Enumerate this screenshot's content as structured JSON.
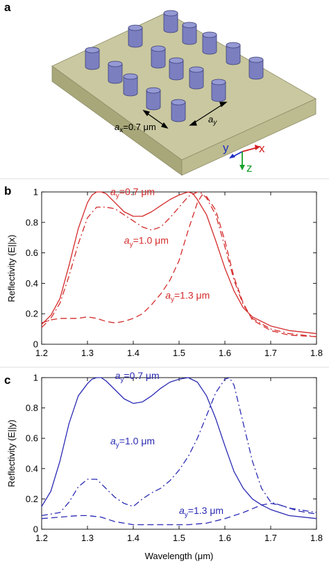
{
  "panels": {
    "a": {
      "label": "a",
      "ax_label": "a",
      "ax_sub": "x",
      "ax_value": "=0.7 μm",
      "ay_label": "a",
      "ay_sub": "y",
      "axes": {
        "x": "x",
        "y": "y",
        "z": "z"
      },
      "colors": {
        "slab_top": "#c9c8a0",
        "slab_front": "#a8a77a",
        "slab_side": "#bdbc90",
        "pillar": "#7b7fc0",
        "axis_x": "#d42020",
        "axis_y": "#2030c0",
        "axis_z": "#18a028"
      }
    },
    "b": {
      "label": "b"
    },
    "c": {
      "label": "c"
    }
  },
  "chart_data": [
    {
      "type": "line",
      "panel": "b",
      "ylabel": "Reflectivity (E||x)",
      "xlabel": "",
      "xlim": [
        1.2,
        1.8
      ],
      "ylim": [
        0,
        1
      ],
      "xticks": [
        "1.2",
        "1.3",
        "1.4",
        "1.5",
        "1.6",
        "1.7",
        "1.8"
      ],
      "yticks": [
        "0",
        "0.2",
        "0.4",
        "0.6",
        "0.8",
        "1"
      ],
      "color": "#d42a2a",
      "annotations": [
        {
          "pre": "a",
          "sub": "y",
          "post": "=0.7 μm",
          "x": 1.35,
          "y": 0.98
        },
        {
          "pre": "a",
          "sub": "y",
          "post": "=1.0 μm",
          "x": 1.38,
          "y": 0.66
        },
        {
          "pre": "a",
          "sub": "y",
          "post": "=1.3 μm",
          "x": 1.47,
          "y": 0.3
        }
      ],
      "series": [
        {
          "style": "solid",
          "x": [
            1.2,
            1.22,
            1.24,
            1.26,
            1.28,
            1.3,
            1.31,
            1.32,
            1.33,
            1.34,
            1.36,
            1.38,
            1.4,
            1.42,
            1.44,
            1.46,
            1.48,
            1.5,
            1.52,
            1.53,
            1.54,
            1.56,
            1.58,
            1.6,
            1.62,
            1.64,
            1.66,
            1.7,
            1.74,
            1.8
          ],
          "y": [
            0.13,
            0.19,
            0.3,
            0.52,
            0.76,
            0.93,
            0.98,
            1.0,
            1.0,
            0.99,
            0.93,
            0.87,
            0.84,
            0.84,
            0.87,
            0.91,
            0.95,
            0.98,
            1.0,
            0.99,
            0.95,
            0.85,
            0.68,
            0.5,
            0.35,
            0.24,
            0.18,
            0.12,
            0.09,
            0.07
          ]
        },
        {
          "style": "dashdot",
          "x": [
            1.2,
            1.22,
            1.24,
            1.26,
            1.28,
            1.3,
            1.32,
            1.34,
            1.36,
            1.38,
            1.4,
            1.42,
            1.44,
            1.46,
            1.48,
            1.5,
            1.52,
            1.54,
            1.55,
            1.56,
            1.58,
            1.6,
            1.62,
            1.64,
            1.66,
            1.7,
            1.74,
            1.8
          ],
          "y": [
            0.11,
            0.17,
            0.27,
            0.45,
            0.66,
            0.83,
            0.9,
            0.9,
            0.89,
            0.85,
            0.81,
            0.77,
            0.75,
            0.77,
            0.83,
            0.9,
            0.97,
            1.0,
            0.99,
            0.96,
            0.85,
            0.64,
            0.42,
            0.26,
            0.17,
            0.1,
            0.07,
            0.05
          ]
        },
        {
          "style": "dashed",
          "x": [
            1.2,
            1.22,
            1.24,
            1.26,
            1.28,
            1.3,
            1.32,
            1.34,
            1.36,
            1.38,
            1.4,
            1.42,
            1.44,
            1.46,
            1.48,
            1.5,
            1.52,
            1.54,
            1.55,
            1.56,
            1.58,
            1.6,
            1.62,
            1.64,
            1.66,
            1.7,
            1.74,
            1.8
          ],
          "y": [
            0.14,
            0.16,
            0.17,
            0.17,
            0.17,
            0.18,
            0.17,
            0.15,
            0.14,
            0.15,
            0.17,
            0.2,
            0.26,
            0.33,
            0.42,
            0.55,
            0.75,
            0.93,
            0.98,
            0.97,
            0.88,
            0.68,
            0.44,
            0.27,
            0.16,
            0.09,
            0.06,
            0.05
          ]
        }
      ]
    },
    {
      "type": "line",
      "panel": "c",
      "ylabel": "Reflectivity (E||y)",
      "xlabel": "Wavelength (μm)",
      "xlim": [
        1.2,
        1.8
      ],
      "ylim": [
        0,
        1
      ],
      "xticks": [
        "1.2",
        "1.3",
        "1.4",
        "1.5",
        "1.6",
        "1.7",
        "1.8"
      ],
      "yticks": [
        "0",
        "0.2",
        "0.4",
        "0.6",
        "0.8",
        "1"
      ],
      "color": "#2a2ab4",
      "annotations": [
        {
          "pre": "a",
          "sub": "y",
          "post": "=0.7 μm",
          "x": 1.36,
          "y": 0.99
        },
        {
          "pre": "a",
          "sub": "y",
          "post": "=1.0 μm",
          "x": 1.35,
          "y": 0.56
        },
        {
          "pre": "a",
          "sub": "y",
          "post": "=1.3 μm",
          "x": 1.5,
          "y": 0.1
        }
      ],
      "series": [
        {
          "style": "solid",
          "x": [
            1.2,
            1.22,
            1.24,
            1.26,
            1.28,
            1.3,
            1.31,
            1.32,
            1.33,
            1.34,
            1.36,
            1.38,
            1.4,
            1.42,
            1.44,
            1.46,
            1.48,
            1.5,
            1.52,
            1.54,
            1.56,
            1.58,
            1.6,
            1.62,
            1.64,
            1.66,
            1.68,
            1.7,
            1.74,
            1.8
          ],
          "y": [
            0.15,
            0.25,
            0.45,
            0.7,
            0.88,
            0.96,
            0.99,
            1.0,
            1.0,
            0.98,
            0.92,
            0.86,
            0.83,
            0.84,
            0.88,
            0.93,
            0.97,
            0.99,
            1.0,
            0.97,
            0.88,
            0.73,
            0.55,
            0.38,
            0.27,
            0.2,
            0.16,
            0.13,
            0.09,
            0.07
          ]
        },
        {
          "style": "dashdot",
          "x": [
            1.2,
            1.22,
            1.24,
            1.26,
            1.28,
            1.3,
            1.32,
            1.34,
            1.36,
            1.38,
            1.4,
            1.42,
            1.44,
            1.46,
            1.48,
            1.5,
            1.52,
            1.54,
            1.56,
            1.58,
            1.6,
            1.61,
            1.62,
            1.64,
            1.66,
            1.68,
            1.7,
            1.74,
            1.8
          ],
          "y": [
            0.09,
            0.1,
            0.11,
            0.18,
            0.28,
            0.33,
            0.33,
            0.27,
            0.21,
            0.17,
            0.15,
            0.2,
            0.24,
            0.27,
            0.32,
            0.39,
            0.48,
            0.6,
            0.75,
            0.9,
            0.99,
            1.0,
            0.95,
            0.7,
            0.45,
            0.27,
            0.18,
            0.14,
            0.11
          ]
        },
        {
          "style": "dashed",
          "x": [
            1.2,
            1.24,
            1.28,
            1.3,
            1.33,
            1.36,
            1.4,
            1.44,
            1.48,
            1.52,
            1.56,
            1.6,
            1.64,
            1.68,
            1.7,
            1.72,
            1.74,
            1.76,
            1.8
          ],
          "y": [
            0.07,
            0.08,
            0.09,
            0.09,
            0.08,
            0.05,
            0.03,
            0.03,
            0.03,
            0.03,
            0.04,
            0.07,
            0.11,
            0.16,
            0.17,
            0.16,
            0.14,
            0.12,
            0.1
          ]
        }
      ]
    }
  ]
}
